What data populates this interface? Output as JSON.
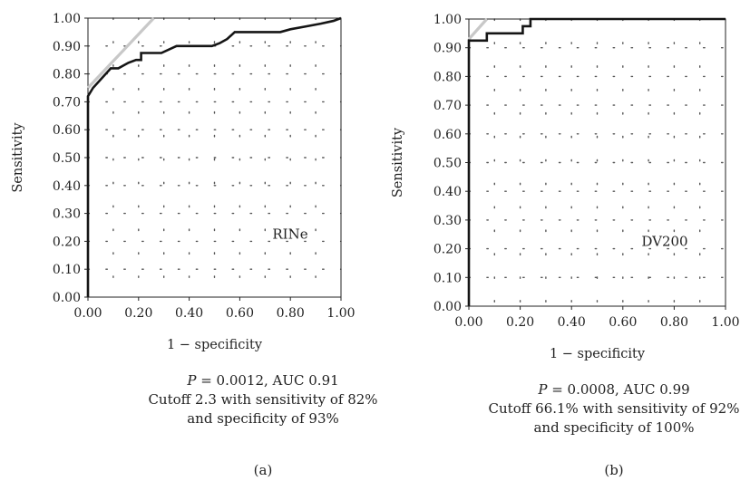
{
  "chart_data": [
    {
      "type": "line",
      "panel_label": "(a)",
      "xlabel": "1 − specificity",
      "ylabel": "Sensitivity",
      "xlim": [
        0,
        1
      ],
      "ylim": [
        0,
        1
      ],
      "x_ticks": [
        "0.00",
        "0.20",
        "0.40",
        "0.60",
        "0.80",
        "1.00"
      ],
      "y_ticks": [
        "0.00",
        "0.10",
        "0.20",
        "0.30",
        "0.40",
        "0.50",
        "0.60",
        "0.70",
        "0.80",
        "0.90",
        "1.00"
      ],
      "grid": "dotted",
      "annotation": "RINe",
      "series": [
        {
          "x": [
            0,
            0,
            0.02,
            0.04,
            0.07,
            0.09,
            0.12,
            0.16,
            0.19,
            0.21,
            0.21,
            0.24,
            0.26,
            0.29,
            0.35,
            0.41,
            0.46,
            0.49,
            0.52,
            0.55,
            0.58,
            0.6,
            0.63,
            0.69,
            0.76,
            0.8,
            0.86,
            0.92,
            0.97,
            1.0
          ],
          "y": [
            0,
            0.72,
            0.75,
            0.77,
            0.8,
            0.82,
            0.82,
            0.84,
            0.85,
            0.85,
            0.875,
            0.875,
            0.875,
            0.875,
            0.9,
            0.9,
            0.9,
            0.9,
            0.91,
            0.925,
            0.95,
            0.95,
            0.95,
            0.95,
            0.95,
            0.96,
            0.97,
            0.98,
            0.99,
            1.0
          ]
        }
      ],
      "reference_line": {
        "x": [
          0,
          0.26
        ],
        "y": [
          0.75,
          1.0
        ],
        "color": "#c8c8c8"
      },
      "caption": {
        "p_symbol": "P",
        "p_text": " = 0.0012, AUC 0.91",
        "line2": "Cutoff 2.3 with sensitivity of 82%",
        "line3": "and specificity of 93%"
      }
    },
    {
      "type": "line",
      "panel_label": "(b)",
      "xlabel": "1 − specificity",
      "ylabel": "Sensitivity",
      "xlim": [
        0,
        1
      ],
      "ylim": [
        0,
        1
      ],
      "x_ticks": [
        "0.00",
        "0.20",
        "0.40",
        "0.60",
        "0.80",
        "1.00"
      ],
      "y_ticks": [
        "0.00",
        "0.10",
        "0.20",
        "0.30",
        "0.40",
        "0.50",
        "0.60",
        "0.70",
        "0.80",
        "0.90",
        "1.00"
      ],
      "grid": "dotted",
      "annotation": "DV200",
      "series": [
        {
          "x": [
            0,
            0,
            0.04,
            0.04,
            0.07,
            0.07,
            0.14,
            0.21,
            0.21,
            0.24,
            0.24,
            0.4,
            0.6,
            0.8,
            1.0
          ],
          "y": [
            0,
            0.925,
            0.925,
            0.925,
            0.925,
            0.95,
            0.95,
            0.95,
            0.975,
            0.975,
            1.0,
            1.0,
            1.0,
            1.0,
            1.0
          ]
        }
      ],
      "reference_line": {
        "x": [
          0,
          0.07
        ],
        "y": [
          0.93,
          1.0
        ],
        "color": "#c8c8c8"
      },
      "caption": {
        "p_symbol": "P",
        "p_text": " = 0.0008, AUC 0.99",
        "line2": "Cutoff 66.1% with sensitivity of 92%",
        "line3": "and specificity of 100%"
      }
    }
  ]
}
